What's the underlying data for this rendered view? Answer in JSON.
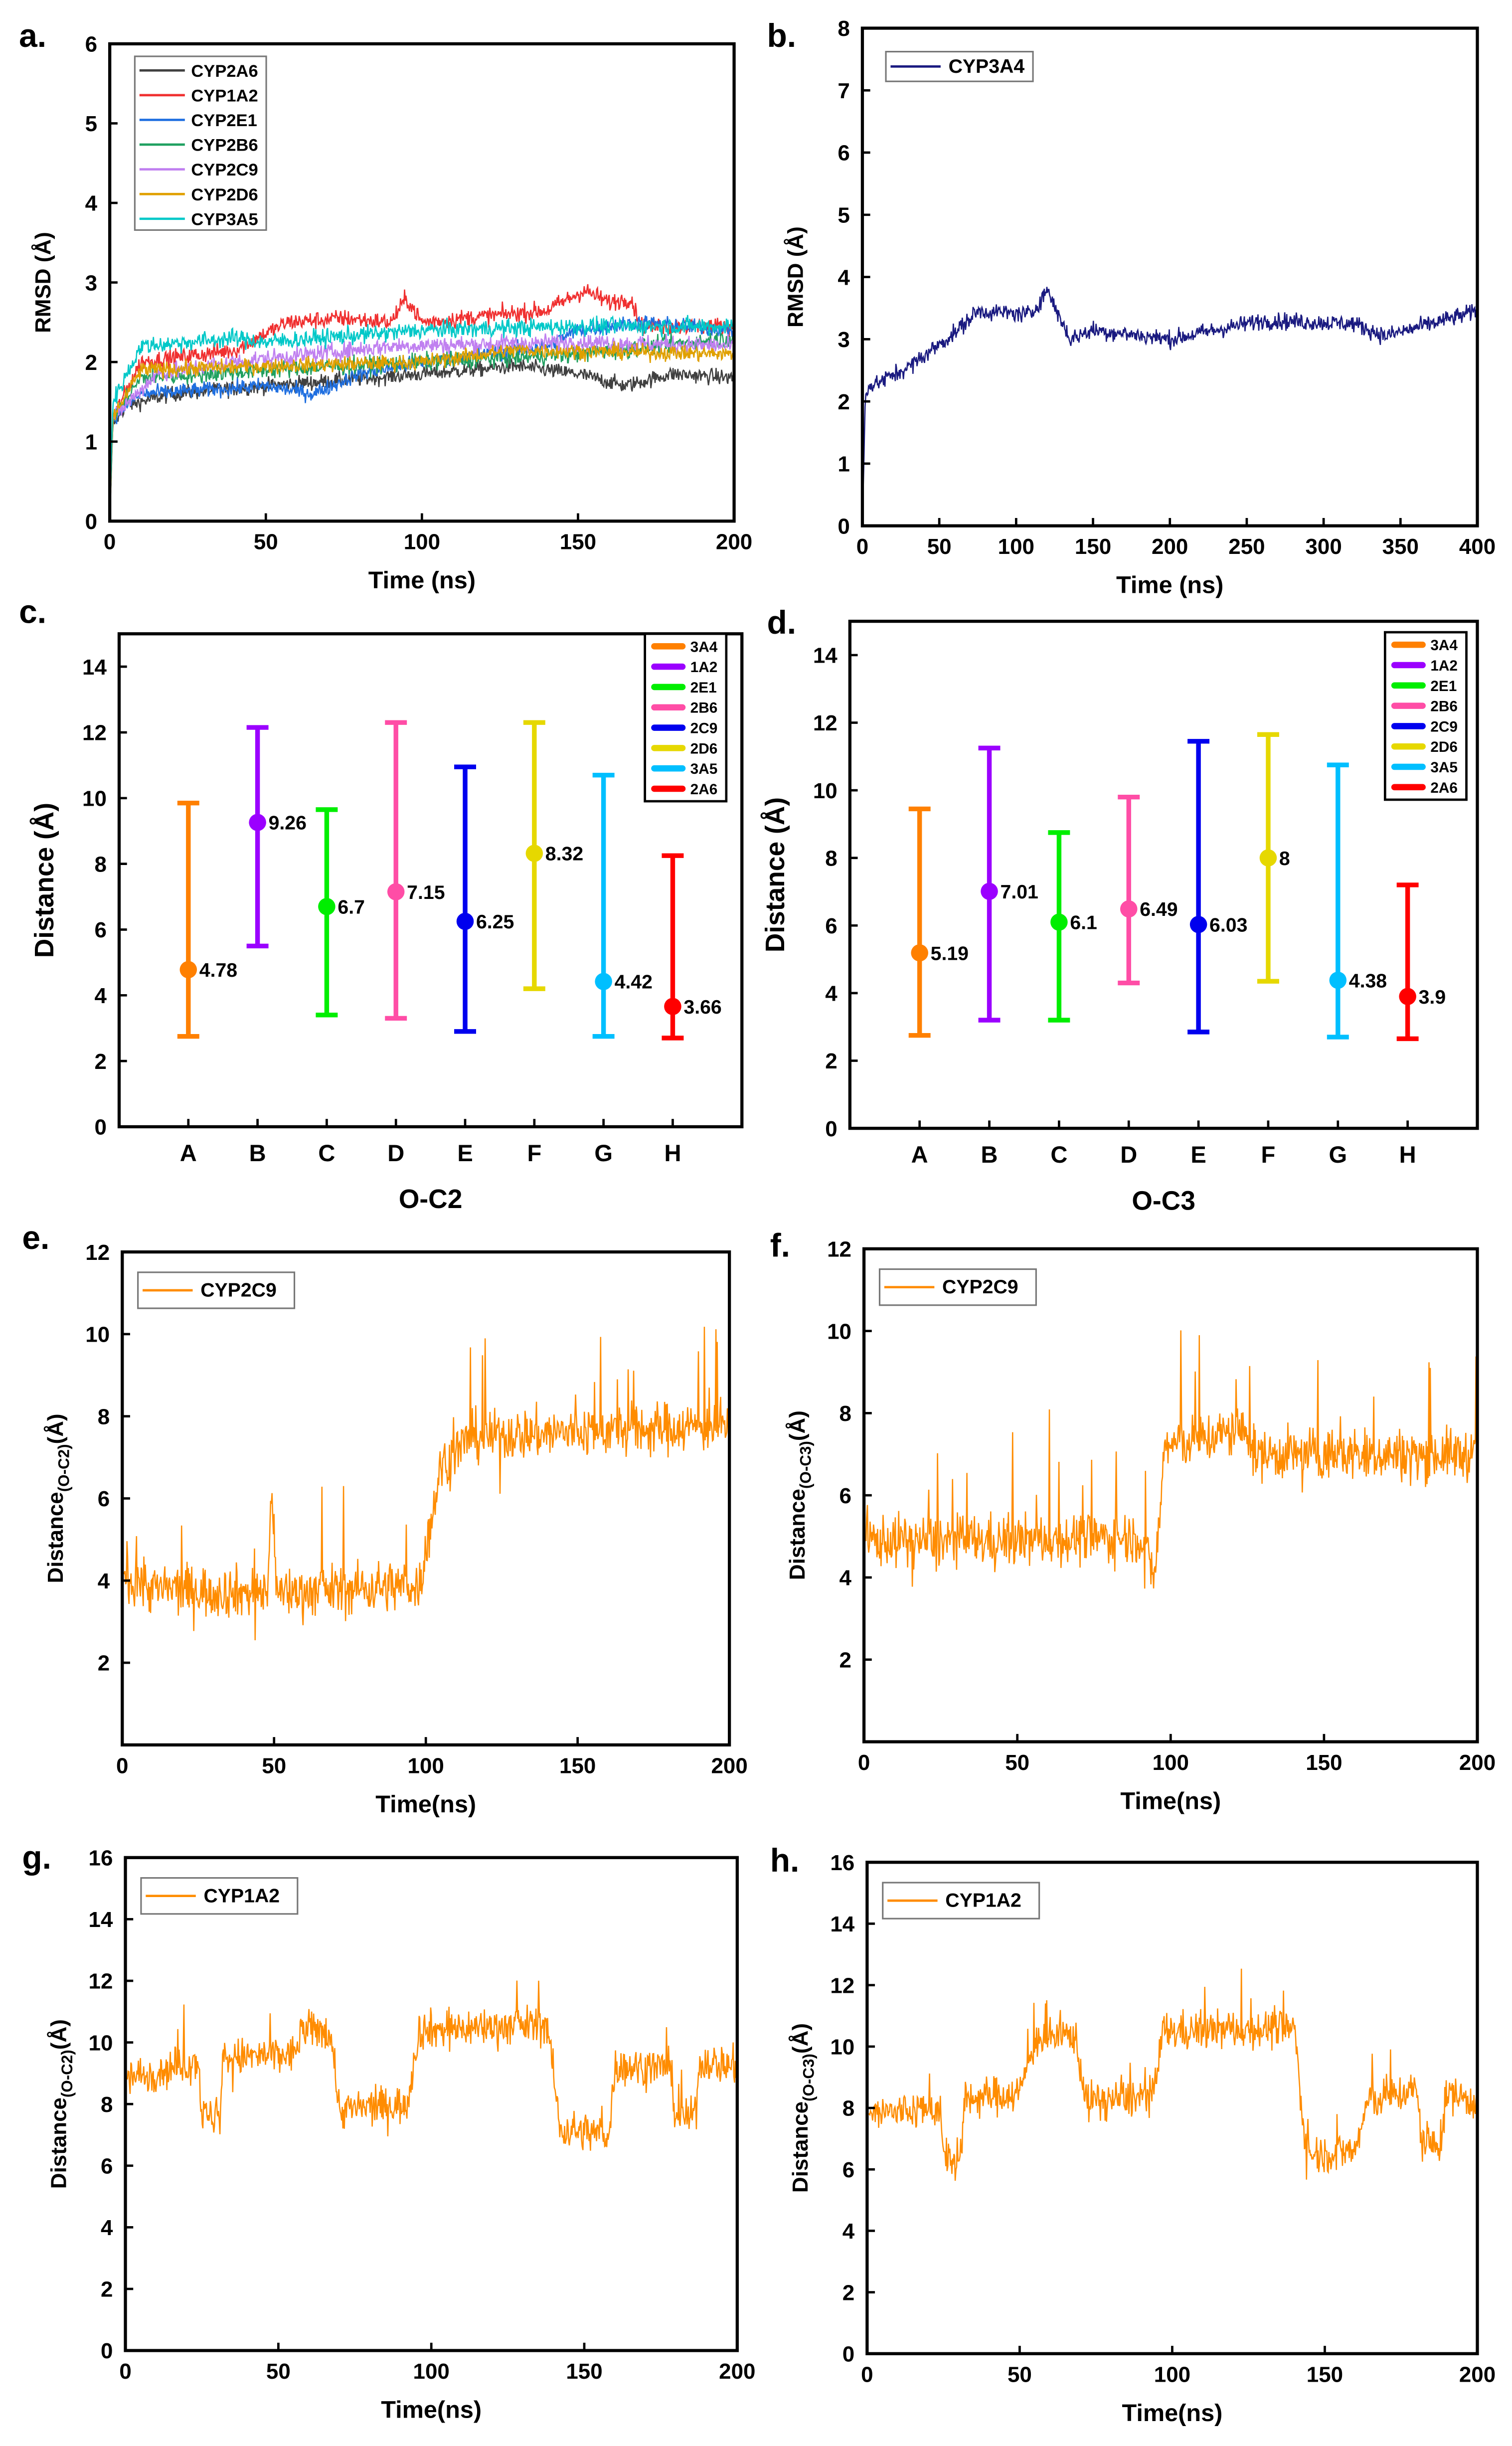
{
  "chart_data": [
    {
      "panel": "a.",
      "type": "line",
      "xlabel": "Time (ns)",
      "ylabel": "RMSD (Å)",
      "xlim": [
        0,
        200
      ],
      "ylim": [
        0,
        6
      ],
      "xticks": [
        0,
        50,
        100,
        150,
        200
      ],
      "yticks": [
        0,
        1,
        2,
        3,
        4,
        5,
        6
      ],
      "legend": "top-left",
      "series": [
        {
          "name": "CYP2A6",
          "color": "#404040",
          "noise": 0.07,
          "points": [
            [
              0,
              0
            ],
            [
              1,
              1.2
            ],
            [
              5,
              1.45
            ],
            [
              20,
              1.6
            ],
            [
              50,
              1.7
            ],
            [
              100,
              1.85
            ],
            [
              130,
              1.95
            ],
            [
              150,
              1.85
            ],
            [
              165,
              1.7
            ],
            [
              180,
              1.85
            ],
            [
              200,
              1.8
            ]
          ]
        },
        {
          "name": "CYP1A2",
          "color": "#f03030",
          "noise": 0.08,
          "points": [
            [
              0,
              0
            ],
            [
              1,
              1.3
            ],
            [
              10,
              2.0
            ],
            [
              40,
              2.15
            ],
            [
              57,
              2.5
            ],
            [
              75,
              2.55
            ],
            [
              90,
              2.5
            ],
            [
              95,
              2.8
            ],
            [
              100,
              2.5
            ],
            [
              140,
              2.65
            ],
            [
              152,
              2.9
            ],
            [
              160,
              2.75
            ],
            [
              167,
              2.8
            ],
            [
              170,
              2.45
            ],
            [
              200,
              2.45
            ]
          ]
        },
        {
          "name": "CYP2E1",
          "color": "#1f6fe0",
          "noise": 0.07,
          "points": [
            [
              0,
              0
            ],
            [
              1,
              1.3
            ],
            [
              10,
              1.6
            ],
            [
              50,
              1.7
            ],
            [
              65,
              1.6
            ],
            [
              80,
              1.85
            ],
            [
              100,
              2.0
            ],
            [
              140,
              2.2
            ],
            [
              150,
              2.4
            ],
            [
              170,
              2.5
            ],
            [
              200,
              2.4
            ]
          ]
        },
        {
          "name": "CYP2B6",
          "color": "#20a060",
          "noise": 0.08,
          "points": [
            [
              0,
              0
            ],
            [
              1,
              1.3
            ],
            [
              10,
              1.8
            ],
            [
              50,
              1.9
            ],
            [
              100,
              2.0
            ],
            [
              150,
              2.1
            ],
            [
              200,
              2.3
            ]
          ]
        },
        {
          "name": "CYP2C9",
          "color": "#c080f0",
          "noise": 0.08,
          "points": [
            [
              0,
              0
            ],
            [
              1,
              1.3
            ],
            [
              15,
              1.85
            ],
            [
              40,
              2.0
            ],
            [
              90,
              2.2
            ],
            [
              150,
              2.25
            ],
            [
              200,
              2.2
            ]
          ]
        },
        {
          "name": "CYP2D6",
          "color": "#e0a000",
          "noise": 0.07,
          "points": [
            [
              0,
              0
            ],
            [
              1,
              1.3
            ],
            [
              10,
              1.9
            ],
            [
              50,
              1.95
            ],
            [
              100,
              2.0
            ],
            [
              130,
              2.15
            ],
            [
              200,
              2.1
            ]
          ]
        },
        {
          "name": "CYP3A5",
          "color": "#00c8c8",
          "noise": 0.08,
          "points": [
            [
              0,
              0
            ],
            [
              1,
              1.5
            ],
            [
              10,
              2.2
            ],
            [
              40,
              2.3
            ],
            [
              50,
              2.25
            ],
            [
              100,
              2.4
            ],
            [
              150,
              2.45
            ],
            [
              200,
              2.45
            ]
          ]
        }
      ]
    },
    {
      "panel": "b.",
      "type": "line",
      "xlabel": "Time (ns)",
      "ylabel": "RMSD (Å)",
      "xlim": [
        0,
        400
      ],
      "ylim": [
        0,
        8
      ],
      "xticks": [
        0,
        50,
        100,
        150,
        200,
        250,
        300,
        350,
        400
      ],
      "yticks": [
        0,
        1,
        2,
        3,
        4,
        5,
        6,
        7,
        8
      ],
      "legend": "top-left",
      "series": [
        {
          "name": "CYP3A4",
          "color": "#1a1a80",
          "noise": 0.1,
          "points": [
            [
              0,
              0
            ],
            [
              2,
              2.2
            ],
            [
              30,
              2.55
            ],
            [
              60,
              3.1
            ],
            [
              75,
              3.45
            ],
            [
              110,
              3.4
            ],
            [
              120,
              3.8
            ],
            [
              135,
              3.0
            ],
            [
              150,
              3.15
            ],
            [
              200,
              3.0
            ],
            [
              260,
              3.3
            ],
            [
              320,
              3.25
            ],
            [
              340,
              3.05
            ],
            [
              400,
              3.45
            ]
          ]
        }
      ]
    },
    {
      "panel": "c.",
      "type": "errorbar",
      "xlabel": "O-C2",
      "ylabel": "Distance (Å)",
      "ylim": [
        0,
        15
      ],
      "yticks": [
        0,
        2,
        4,
        6,
        8,
        10,
        12,
        14
      ],
      "categories": [
        "A",
        "B",
        "C",
        "D",
        "E",
        "F",
        "G",
        "H"
      ],
      "legend": "top-right",
      "series": [
        {
          "name": "3A4",
          "color": "#ff8000",
          "value": 4.78,
          "label": "4.78",
          "low": 2.75,
          "high": 9.85
        },
        {
          "name": "1A2",
          "color": "#9b00ff",
          "value": 9.26,
          "label": "9.26",
          "low": 5.5,
          "high": 12.15
        },
        {
          "name": "2E1",
          "color": "#00ee00",
          "value": 6.7,
          "label": "6.7",
          "low": 3.4,
          "high": 9.65
        },
        {
          "name": "2B6",
          "color": "#ff4da6",
          "value": 7.15,
          "label": "7.15",
          "low": 3.3,
          "high": 12.3
        },
        {
          "name": "2C9",
          "color": "#0000ee",
          "value": 6.25,
          "label": "6.25",
          "low": 2.9,
          "high": 10.95
        },
        {
          "name": "2D6",
          "color": "#e6d800",
          "value": 8.32,
          "label": "8.32",
          "low": 4.2,
          "high": 12.3
        },
        {
          "name": "3A5",
          "color": "#00bfff",
          "value": 4.42,
          "label": "4.42",
          "low": 2.75,
          "high": 10.7
        },
        {
          "name": "2A6",
          "color": "#ff0000",
          "value": 3.66,
          "label": "3.66",
          "low": 2.7,
          "high": 8.25
        }
      ]
    },
    {
      "panel": "d.",
      "type": "errorbar",
      "xlabel": "O-C3",
      "ylabel": "Distance (Å)",
      "ylim": [
        0,
        15
      ],
      "yticks": [
        0,
        2,
        4,
        6,
        8,
        10,
        12,
        14
      ],
      "categories": [
        "A",
        "B",
        "C",
        "D",
        "E",
        "F",
        "G",
        "H"
      ],
      "legend": "top-right",
      "series": [
        {
          "name": "3A4",
          "color": "#ff8000",
          "value": 5.19,
          "label": "5.19",
          "low": 2.75,
          "high": 9.45
        },
        {
          "name": "1A2",
          "color": "#9b00ff",
          "value": 7.01,
          "label": "7.01",
          "low": 3.2,
          "high": 11.25
        },
        {
          "name": "2E1",
          "color": "#00ee00",
          "value": 6.1,
          "label": "6.1",
          "low": 3.2,
          "high": 8.75
        },
        {
          "name": "2B6",
          "color": "#ff4da6",
          "value": 6.49,
          "label": "6.49",
          "low": 4.3,
          "high": 9.8
        },
        {
          "name": "2C9",
          "color": "#0000ee",
          "value": 6.03,
          "label": "6.03",
          "low": 2.85,
          "high": 11.45
        },
        {
          "name": "2D6",
          "color": "#e6d800",
          "value": 8,
          "label": "8",
          "low": 4.35,
          "high": 11.65
        },
        {
          "name": "3A5",
          "color": "#00bfff",
          "value": 4.38,
          "label": "4.38",
          "low": 2.7,
          "high": 10.75
        },
        {
          "name": "2A6",
          "color": "#ff0000",
          "value": 3.9,
          "label": "3.9",
          "low": 2.65,
          "high": 7.2
        }
      ]
    },
    {
      "panel": "e.",
      "type": "line",
      "xlabel": "Time(ns)",
      "ylabel": [
        "Distance",
        "(O-C2)",
        "(Å)"
      ],
      "xlim": [
        0,
        200
      ],
      "ylim": [
        0,
        12
      ],
      "xticks": [
        0,
        50,
        100,
        150,
        200
      ],
      "yticks": [
        2,
        4,
        6,
        8,
        10,
        12
      ],
      "legend": "top-left",
      "series": [
        {
          "name": "CYP2C9",
          "color": "#ff8c00",
          "noise": 0.45,
          "spikes": 1.8,
          "points": [
            [
              0,
              4.2
            ],
            [
              10,
              3.8
            ],
            [
              48,
              3.7
            ],
            [
              49,
              6.5
            ],
            [
              51,
              3.7
            ],
            [
              98,
              3.9
            ],
            [
              105,
              6.8
            ],
            [
              115,
              7.5
            ],
            [
              200,
              7.8
            ]
          ]
        }
      ]
    },
    {
      "panel": "f.",
      "type": "line",
      "xlabel": "Time(ns)",
      "ylabel": [
        "Distance",
        "(O-C3)",
        "(Å)"
      ],
      "xlim": [
        0,
        200
      ],
      "ylim": [
        0,
        12
      ],
      "xticks": [
        0,
        50,
        100,
        150,
        200
      ],
      "yticks": [
        2,
        4,
        6,
        8,
        10,
        12
      ],
      "legend": "top-left",
      "series": [
        {
          "name": "CYP2C9",
          "color": "#ff8c00",
          "noise": 0.45,
          "spikes": 1.8,
          "points": [
            [
              0,
              4.9
            ],
            [
              50,
              4.9
            ],
            [
              90,
              5.0
            ],
            [
              95,
              4.0
            ],
            [
              98,
              7.2
            ],
            [
              125,
              7.6
            ],
            [
              127,
              7.0
            ],
            [
              200,
              7.0
            ]
          ]
        }
      ]
    },
    {
      "panel": "g.",
      "type": "line",
      "xlabel": "Time(ns)",
      "ylabel": [
        "Distance",
        "(O-C2)",
        "(Å)"
      ],
      "xlim": [
        0,
        200
      ],
      "ylim": [
        0,
        16
      ],
      "xticks": [
        0,
        50,
        100,
        150,
        200
      ],
      "yticks": [
        0,
        2,
        4,
        6,
        8,
        10,
        12,
        14,
        16
      ],
      "legend": "top-left",
      "series": [
        {
          "name": "CYP1A2",
          "color": "#ff8c00",
          "noise": 0.45,
          "spikes": 1.0,
          "points": [
            [
              0,
              8.8
            ],
            [
              24,
              9.4
            ],
            [
              25,
              7.6
            ],
            [
              31,
              7.6
            ],
            [
              32,
              9.5
            ],
            [
              55,
              9.6
            ],
            [
              58,
              10.4
            ],
            [
              67,
              10.4
            ],
            [
              70,
              7.8
            ],
            [
              92,
              8.0
            ],
            [
              96,
              10.4
            ],
            [
              138,
              10.6
            ],
            [
              142,
              7.2
            ],
            [
              158,
              7.0
            ],
            [
              160,
              9.2
            ],
            [
              178,
              9.2
            ],
            [
              180,
              7.6
            ],
            [
              186,
              7.6
            ],
            [
              188,
              9.4
            ],
            [
              200,
              9.2
            ]
          ]
        }
      ]
    },
    {
      "panel": "h.",
      "type": "line",
      "xlabel": "Time(ns)",
      "ylabel": [
        "Distance",
        "(O-C3)",
        "(Å)"
      ],
      "xlim": [
        0,
        200
      ],
      "ylim": [
        0,
        16
      ],
      "xticks": [
        0,
        50,
        100,
        150,
        200
      ],
      "yticks": [
        0,
        2,
        4,
        6,
        8,
        10,
        12,
        14,
        16
      ],
      "legend": "top-left",
      "series": [
        {
          "name": "CYP1A2",
          "color": "#ff8c00",
          "noise": 0.45,
          "spikes": 1.0,
          "points": [
            [
              0,
              7.8
            ],
            [
              24,
              8.0
            ],
            [
              25,
              6.3
            ],
            [
              31,
              6.3
            ],
            [
              32,
              8.3
            ],
            [
              50,
              8.5
            ],
            [
              55,
              10.2
            ],
            [
              68,
              10.4
            ],
            [
              72,
              8.2
            ],
            [
              94,
              8.4
            ],
            [
              97,
              10.5
            ],
            [
              140,
              10.6
            ],
            [
              144,
              6.5
            ],
            [
              160,
              6.6
            ],
            [
              164,
              8.2
            ],
            [
              180,
              8.6
            ],
            [
              182,
              6.8
            ],
            [
              188,
              6.8
            ],
            [
              190,
              8.5
            ],
            [
              200,
              8.2
            ]
          ]
        }
      ]
    }
  ]
}
